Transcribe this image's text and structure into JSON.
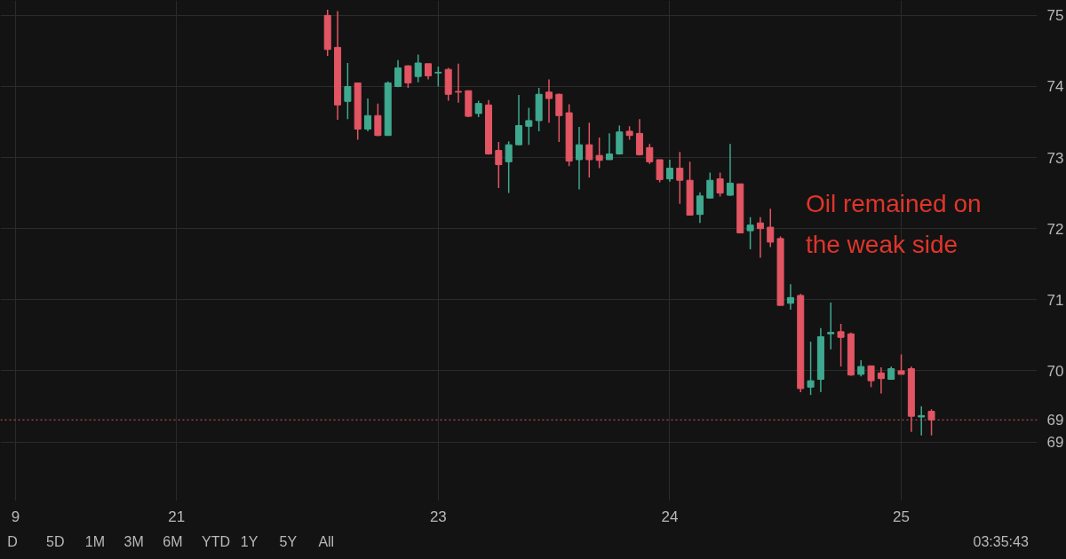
{
  "chart_data": {
    "type": "candlestick",
    "categories": [
      null,
      "9",
      null,
      null,
      null,
      null,
      null,
      null,
      null,
      null,
      null,
      null,
      null,
      null,
      null,
      null,
      null,
      "21",
      null,
      null,
      null,
      null,
      null,
      null,
      null,
      null,
      null,
      null,
      null,
      null,
      null,
      null,
      null,
      null,
      null,
      null,
      null,
      null,
      null,
      null,
      null,
      null,
      null,
      "23",
      null,
      null,
      null,
      null,
      null,
      null,
      null,
      null,
      null,
      null,
      null,
      null,
      null,
      null,
      null,
      null,
      null,
      null,
      null,
      null,
      null,
      null,
      "24",
      null,
      null,
      null,
      null,
      null,
      null,
      null,
      null,
      null,
      null,
      null,
      null,
      null,
      null,
      null,
      null,
      null,
      null,
      null,
      null,
      null,
      null,
      "25",
      null,
      null,
      null,
      null,
      null,
      null,
      null,
      null,
      null,
      null,
      null,
      null,
      null
    ],
    "ohlc": [
      null,
      null,
      null,
      null,
      null,
      null,
      null,
      null,
      null,
      null,
      null,
      null,
      null,
      null,
      null,
      null,
      null,
      null,
      null,
      null,
      null,
      null,
      null,
      null,
      null,
      null,
      null,
      null,
      null,
      null,
      null,
      null,
      [
        75.0,
        75.08,
        74.43,
        74.52
      ],
      [
        74.55,
        75.06,
        73.53,
        73.74
      ],
      [
        73.79,
        74.33,
        73.54,
        74.0
      ],
      [
        74.05,
        74.05,
        73.25,
        73.4
      ],
      [
        73.4,
        73.83,
        73.37,
        73.59
      ],
      [
        73.59,
        73.76,
        73.3,
        73.31
      ],
      [
        73.31,
        74.07,
        73.31,
        74.05
      ],
      [
        74.0,
        74.37,
        73.99,
        74.26
      ],
      [
        74.29,
        74.3,
        73.98,
        74.05
      ],
      [
        74.14,
        74.45,
        74.06,
        74.33
      ],
      [
        74.32,
        74.32,
        74.1,
        74.15
      ],
      [
        74.19,
        74.28,
        74.0,
        74.2
      ],
      [
        74.24,
        74.26,
        73.8,
        73.89
      ],
      [
        73.93,
        74.32,
        73.77,
        73.92
      ],
      [
        73.94,
        73.94,
        73.57,
        73.58
      ],
      [
        73.62,
        73.8,
        73.57,
        73.76
      ],
      [
        73.74,
        73.81,
        73.04,
        73.05
      ],
      [
        73.1,
        73.22,
        72.57,
        72.9
      ],
      [
        72.94,
        73.23,
        72.5,
        73.18
      ],
      [
        73.18,
        73.88,
        73.18,
        73.45
      ],
      [
        73.44,
        73.7,
        73.18,
        73.52
      ],
      [
        73.52,
        73.98,
        73.37,
        73.89
      ],
      [
        73.92,
        74.1,
        73.49,
        73.83
      ],
      [
        73.89,
        73.9,
        73.22,
        73.59
      ],
      [
        73.63,
        73.75,
        72.88,
        72.95
      ],
      [
        72.97,
        73.43,
        72.55,
        73.18
      ],
      [
        73.18,
        73.49,
        72.72,
        72.97
      ],
      [
        73.03,
        73.28,
        72.85,
        72.96
      ],
      [
        72.97,
        73.34,
        72.97,
        73.05
      ],
      [
        73.05,
        73.45,
        73.04,
        73.36
      ],
      [
        73.37,
        73.44,
        73.25,
        73.31
      ],
      [
        73.34,
        73.54,
        73.03,
        73.04
      ],
      [
        73.14,
        73.19,
        72.91,
        72.94
      ],
      [
        72.97,
        72.97,
        72.65,
        72.69
      ],
      [
        72.7,
        72.97,
        72.66,
        72.85
      ],
      [
        72.85,
        73.08,
        72.35,
        72.68
      ],
      [
        72.68,
        72.94,
        72.19,
        72.19
      ],
      [
        72.2,
        72.51,
        72.08,
        72.46
      ],
      [
        72.43,
        72.79,
        72.43,
        72.68
      ],
      [
        72.7,
        72.79,
        72.45,
        72.5
      ],
      [
        72.47,
        73.19,
        72.46,
        72.64
      ],
      [
        72.63,
        72.63,
        71.94,
        71.94
      ],
      [
        71.97,
        72.16,
        71.71,
        72.05
      ],
      [
        72.08,
        72.16,
        71.59,
        72.0
      ],
      [
        72.02,
        72.28,
        71.74,
        71.81
      ],
      [
        71.86,
        71.89,
        70.92,
        70.92
      ],
      [
        70.95,
        71.22,
        70.86,
        71.03
      ],
      [
        71.06,
        71.08,
        69.7,
        69.75
      ],
      [
        69.77,
        70.41,
        69.66,
        69.86
      ],
      [
        69.88,
        70.6,
        69.7,
        70.48
      ],
      [
        70.52,
        70.96,
        70.3,
        70.54
      ],
      [
        70.55,
        70.66,
        70.06,
        70.47
      ],
      [
        70.52,
        70.54,
        69.93,
        69.94
      ],
      [
        69.95,
        70.15,
        69.92,
        70.06
      ],
      [
        70.07,
        70.07,
        69.77,
        69.86
      ],
      [
        69.97,
        70.05,
        69.68,
        69.89
      ],
      [
        69.88,
        70.06,
        69.88,
        70.03
      ],
      [
        70.0,
        70.23,
        69.95,
        69.95
      ],
      [
        70.03,
        70.06,
        69.14,
        69.36
      ],
      [
        69.35,
        69.5,
        69.09,
        69.37
      ],
      [
        69.43,
        69.46,
        69.09,
        69.31
      ],
      null,
      null,
      null,
      null,
      null,
      null,
      null,
      null,
      null,
      null
    ],
    "colors": [
      null,
      null,
      null,
      null,
      null,
      null,
      null,
      null,
      null,
      null,
      null,
      null,
      null,
      null,
      null,
      null,
      null,
      null,
      null,
      null,
      null,
      null,
      null,
      null,
      null,
      null,
      null,
      null,
      null,
      null,
      null,
      null,
      "#e25563",
      "#e25563",
      "#3fa98f",
      "#e25563",
      "#3fa98f",
      "#e25563",
      "#3fa98f",
      "#3fa98f",
      "#e25563",
      "#3fa98f",
      "#e25563",
      "#3fa98f",
      "#e25563",
      "#e25563",
      "#e25563",
      "#3fa98f",
      "#e25563",
      "#e25563",
      "#3fa98f",
      "#3fa98f",
      "#3fa98f",
      "#3fa98f",
      "#e25563",
      "#e25563",
      "#e25563",
      "#3fa98f",
      "#e25563",
      "#e25563",
      "#3fa98f",
      "#3fa98f",
      "#e25563",
      "#e25563",
      "#e25563",
      "#e25563",
      "#3fa98f",
      "#e25563",
      "#e25563",
      "#3fa98f",
      "#3fa98f",
      "#e25563",
      "#3fa98f",
      "#e25563",
      "#3fa98f",
      "#e25563",
      "#e25563",
      "#e25563",
      "#3fa98f",
      "#e25563",
      "#3fa98f",
      "#3fa98f",
      "#3fa98f",
      "#e25563",
      "#e25563",
      "#3fa98f",
      "#e25563",
      "#e25563",
      "#3fa98f",
      "#e25563",
      "#e25563",
      "#3fa98f",
      "#e25563",
      null,
      null,
      null,
      null,
      null,
      null,
      null,
      null,
      null,
      null
    ],
    "ylim": [
      68.17,
      75.21
    ],
    "yticks": [
      69,
      70,
      71,
      72,
      73,
      74,
      75
    ],
    "grid": true,
    "ref_lines": [
      {
        "axis": "y",
        "value": 69.31,
        "label": "69",
        "color": "#e25563",
        "line_style": "dotted"
      }
    ],
    "annotations": [
      "Oil remained on the weak side",
      "D",
      "5D",
      "1M",
      "3M",
      "6M",
      "YTD",
      "1Y",
      "5Y",
      "All",
      "03:35:43"
    ]
  }
}
